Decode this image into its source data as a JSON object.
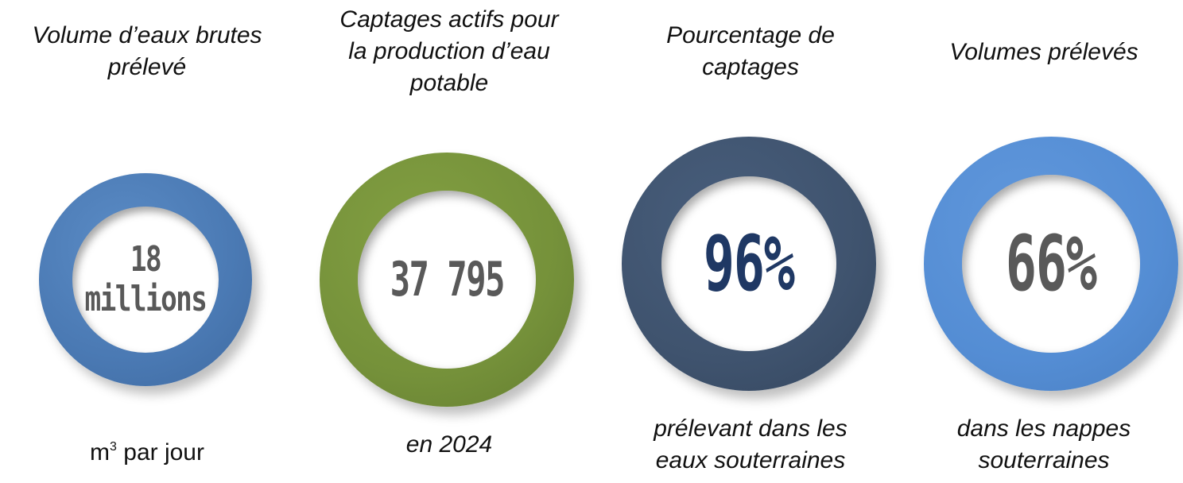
{
  "colors": {
    "blue": "#4f81bd",
    "green": "#77933c",
    "dark_blue": "#3f536e",
    "light_blue": "#548dd4",
    "grey_text": "#595959",
    "navy_text": "#1f3864"
  },
  "stats": [
    {
      "heading_lines": [
        "Volume d’eaux brutes",
        "prélevé"
      ],
      "value_lines": [
        "18",
        "millions"
      ],
      "caption_unit": "m",
      "caption_sup": "3",
      "caption_rest": " par jour"
    },
    {
      "heading_lines": [
        "Captages actifs pour",
        "la production d’eau",
        "potable"
      ],
      "value": "37 795",
      "caption_lines": [
        "en 2024"
      ]
    },
    {
      "heading_lines": [
        "Pourcentage de",
        "captages"
      ],
      "value": "96%",
      "caption_lines": [
        "prélevant dans les",
        "eaux souterraines"
      ]
    },
    {
      "heading_lines": [
        "Volumes prélevés"
      ],
      "value": "66%",
      "caption_lines": [
        "dans les nappes",
        "souterraines"
      ]
    }
  ]
}
